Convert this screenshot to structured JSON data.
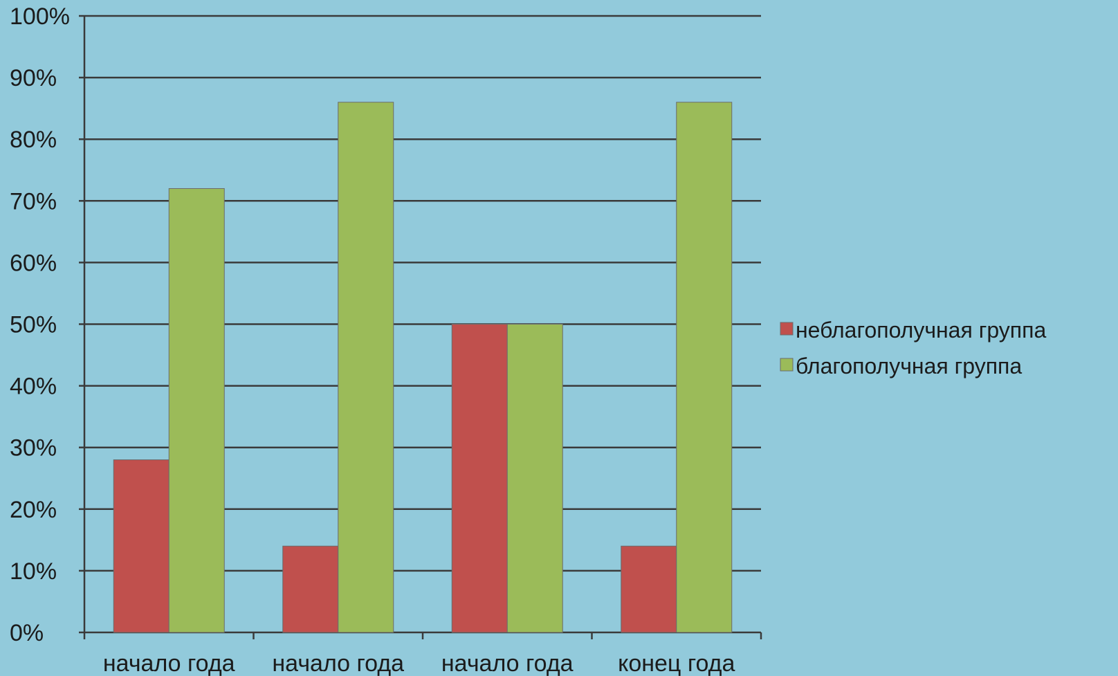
{
  "chart_data": {
    "type": "bar",
    "categories": [
      "начало года",
      "начало года",
      "начало года",
      "конец года"
    ],
    "series": [
      {
        "name": "неблагополучная группа",
        "values": [
          28,
          14,
          50,
          14
        ],
        "color": "#c0504d"
      },
      {
        "name": "благополучная группа",
        "values": [
          72,
          86,
          50,
          86
        ],
        "color": "#9bbb59"
      }
    ],
    "ylim": [
      0,
      100
    ],
    "yticks": [
      "0%",
      "10%",
      "20%",
      "30%",
      "40%",
      "50%",
      "60%",
      "70%",
      "80%",
      "90%",
      "100%"
    ],
    "grid": true,
    "legend_position": "right",
    "background_color": "#92cadb",
    "axis_color": "#3a3a3a"
  }
}
